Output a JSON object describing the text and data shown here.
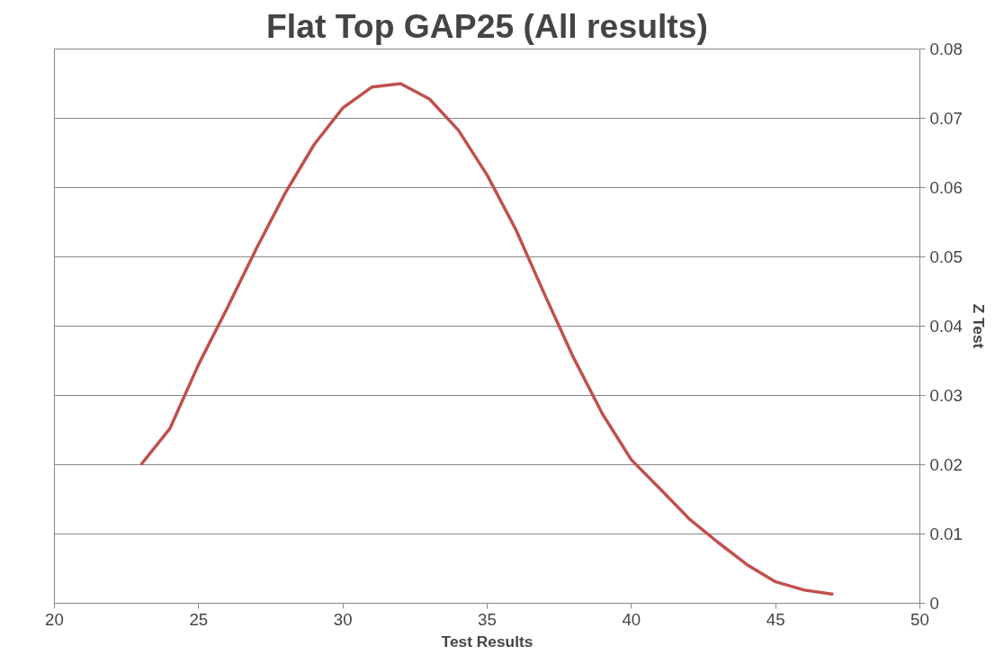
{
  "chart_data": {
    "type": "line",
    "title": "Flat Top GAP25 (All results)",
    "xlabel": "Test Results",
    "ylabel": "Z Test",
    "x": [
      23,
      24,
      25,
      26,
      27,
      28,
      29,
      30,
      31,
      32,
      33,
      34,
      35,
      36,
      37,
      38,
      39,
      40,
      41,
      42,
      43,
      44,
      45,
      46,
      47
    ],
    "series": [
      {
        "color": "#c0504d",
        "values": [
          0.02,
          0.0252,
          0.0345,
          0.0427,
          0.0512,
          0.0592,
          0.0662,
          0.0715,
          0.0745,
          0.075,
          0.0728,
          0.0683,
          0.0618,
          0.0539,
          0.0445,
          0.0354,
          0.0273,
          0.0207,
          0.0165,
          0.0122,
          0.0088,
          0.0056,
          0.0031,
          0.0019,
          0.0013
        ]
      }
    ],
    "xlim": [
      20,
      50
    ],
    "xticks": [
      20,
      25,
      30,
      35,
      40,
      45,
      50
    ],
    "ylim": [
      0,
      0.08
    ],
    "yticks": [
      {
        "value": 0,
        "label": "0"
      },
      0.01,
      0.02,
      0.03,
      0.04,
      0.05,
      0.06,
      0.07,
      0.08
    ],
    "grid": "y",
    "marker": "none",
    "line_style": "solid"
  }
}
